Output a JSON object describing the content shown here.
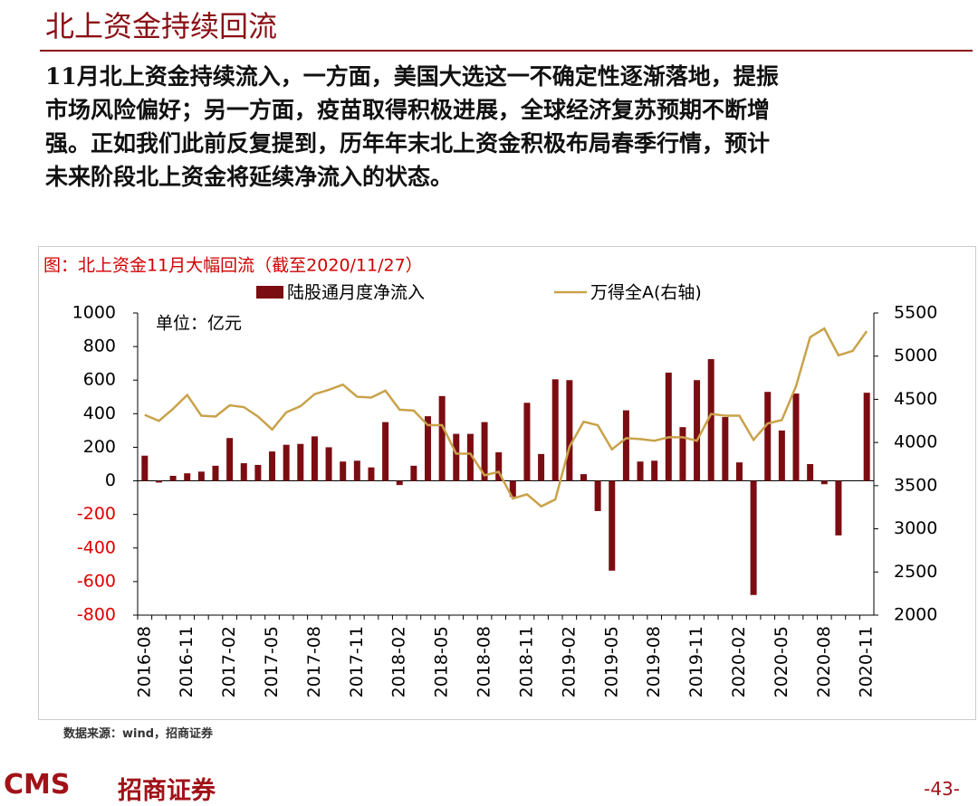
{
  "title": "北上资金持续回流",
  "body": [
    "11月北上资金持续流入，一方面，美国大选这一不确定性逐渐落地，提振",
    "市场风险偏好；另一方面，疫苗取得积极进展，全球经济复苏预期不断增",
    "强。正如我们此前反复提到，历年年末北上资金积极布局春季行情，预计",
    "未来阶段北上资金将延续净流入的状态。"
  ],
  "chart_data": {
    "type": "bar",
    "title": "图：北上资金11月大幅回流（截至2020/11/27）",
    "unit_label": "单位：亿元",
    "categories": [
      "2016-08",
      null,
      null,
      "2016-11",
      null,
      null,
      "2017-02",
      null,
      null,
      "2017-05",
      null,
      null,
      "2017-08",
      null,
      null,
      "2017-11",
      null,
      null,
      "2018-02",
      null,
      null,
      "2018-05",
      null,
      null,
      "2018-08",
      null,
      null,
      "2018-11",
      null,
      null,
      "2019-02",
      null,
      null,
      "2019-05",
      null,
      null,
      "2019-08",
      null,
      null,
      "2019-11",
      null,
      null,
      "2020-02",
      null,
      null,
      "2020-05",
      null,
      null,
      "2020-08",
      null,
      null,
      "2020-11"
    ],
    "series": [
      {
        "name": "陆股通月度净流入",
        "type": "bar",
        "color": "#7b0d12",
        "values": [
          150,
          -10,
          30,
          45,
          55,
          90,
          255,
          105,
          95,
          175,
          215,
          220,
          265,
          200,
          115,
          120,
          80,
          350,
          -25,
          90,
          385,
          505,
          280,
          280,
          350,
          170,
          -95,
          465,
          160,
          605,
          600,
          40,
          -180,
          -535,
          420,
          115,
          120,
          645,
          320,
          600,
          725,
          380,
          110,
          -680,
          530,
          300,
          520,
          100,
          -20,
          -325,
          0,
          525
        ]
      },
      {
        "name": "万得全A(右轴)",
        "type": "line",
        "axis": "y2",
        "color": "#c9a24a",
        "values": [
          4320,
          4250,
          4390,
          4550,
          4310,
          4300,
          4430,
          4410,
          4300,
          4150,
          4350,
          4420,
          4560,
          4610,
          4670,
          4530,
          4520,
          4600,
          4380,
          4370,
          4200,
          4200,
          3870,
          3870,
          3620,
          3660,
          3350,
          3400,
          3260,
          3340,
          3950,
          4240,
          4200,
          3920,
          4050,
          4040,
          4020,
          4060,
          4060,
          4020,
          4330,
          4310,
          4310,
          4030,
          4220,
          4260,
          4650,
          5220,
          5320,
          5010,
          5060,
          5290
        ]
      }
    ],
    "ylim": [
      -800,
      1000
    ],
    "yticks": [
      -800,
      -600,
      -400,
      -200,
      0,
      200,
      400,
      600,
      800,
      1000
    ],
    "negative_tick_color": "#e00000",
    "y2lim": [
      2000,
      5500
    ],
    "y2ticks": [
      2000,
      2500,
      3000,
      3500,
      4000,
      4500,
      5000,
      5500
    ]
  },
  "source": "数据来源：wind，招商证券",
  "footer": {
    "logo": "CMS",
    "brand": "招商证券",
    "page": "-43-"
  }
}
